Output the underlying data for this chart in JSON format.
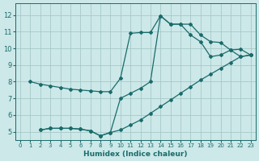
{
  "xlabel": "Humidex (Indice chaleur)",
  "bg_color": "#cce8e8",
  "grid_color": "#a0c4c4",
  "line_color": "#1a6b6b",
  "xlim": [
    -0.5,
    23.5
  ],
  "ylim": [
    4.5,
    12.7
  ],
  "xticks": [
    0,
    1,
    2,
    3,
    4,
    5,
    6,
    7,
    8,
    9,
    10,
    11,
    12,
    13,
    14,
    15,
    16,
    17,
    18,
    19,
    20,
    21,
    22,
    23
  ],
  "yticks": [
    5,
    6,
    7,
    8,
    9,
    10,
    11,
    12
  ],
  "line1_x": [
    1,
    2,
    3,
    4,
    5,
    6,
    7,
    8,
    9,
    10,
    11,
    12,
    13,
    14,
    15,
    16,
    17,
    18,
    19,
    20,
    21,
    22,
    23
  ],
  "line1_y": [
    8.0,
    7.85,
    7.75,
    7.65,
    7.55,
    7.5,
    7.45,
    7.4,
    7.4,
    8.2,
    10.9,
    10.95,
    10.95,
    11.95,
    11.45,
    11.45,
    11.45,
    10.8,
    10.4,
    10.35,
    9.9,
    9.95,
    9.6
  ],
  "line2_x": [
    2,
    3,
    4,
    5,
    6,
    7,
    8,
    9,
    10,
    11,
    12,
    13,
    14,
    15,
    16,
    17,
    18,
    19,
    20,
    21,
    22,
    23
  ],
  "line2_y": [
    5.1,
    5.2,
    5.2,
    5.2,
    5.15,
    5.05,
    4.75,
    4.95,
    5.1,
    5.4,
    5.7,
    6.1,
    6.5,
    6.9,
    7.3,
    7.7,
    8.1,
    8.45,
    8.8,
    9.15,
    9.5,
    9.6
  ],
  "line3_x": [
    2,
    3,
    4,
    5,
    6,
    7,
    8,
    9,
    10,
    11,
    12,
    13,
    14,
    15,
    16,
    17,
    18,
    19,
    20,
    21,
    22,
    23
  ],
  "line3_y": [
    5.1,
    5.2,
    5.2,
    5.2,
    5.15,
    5.05,
    4.75,
    4.95,
    7.0,
    7.3,
    7.6,
    8.0,
    11.95,
    11.45,
    11.45,
    10.8,
    10.4,
    9.5,
    9.6,
    9.9,
    9.5,
    9.6
  ]
}
